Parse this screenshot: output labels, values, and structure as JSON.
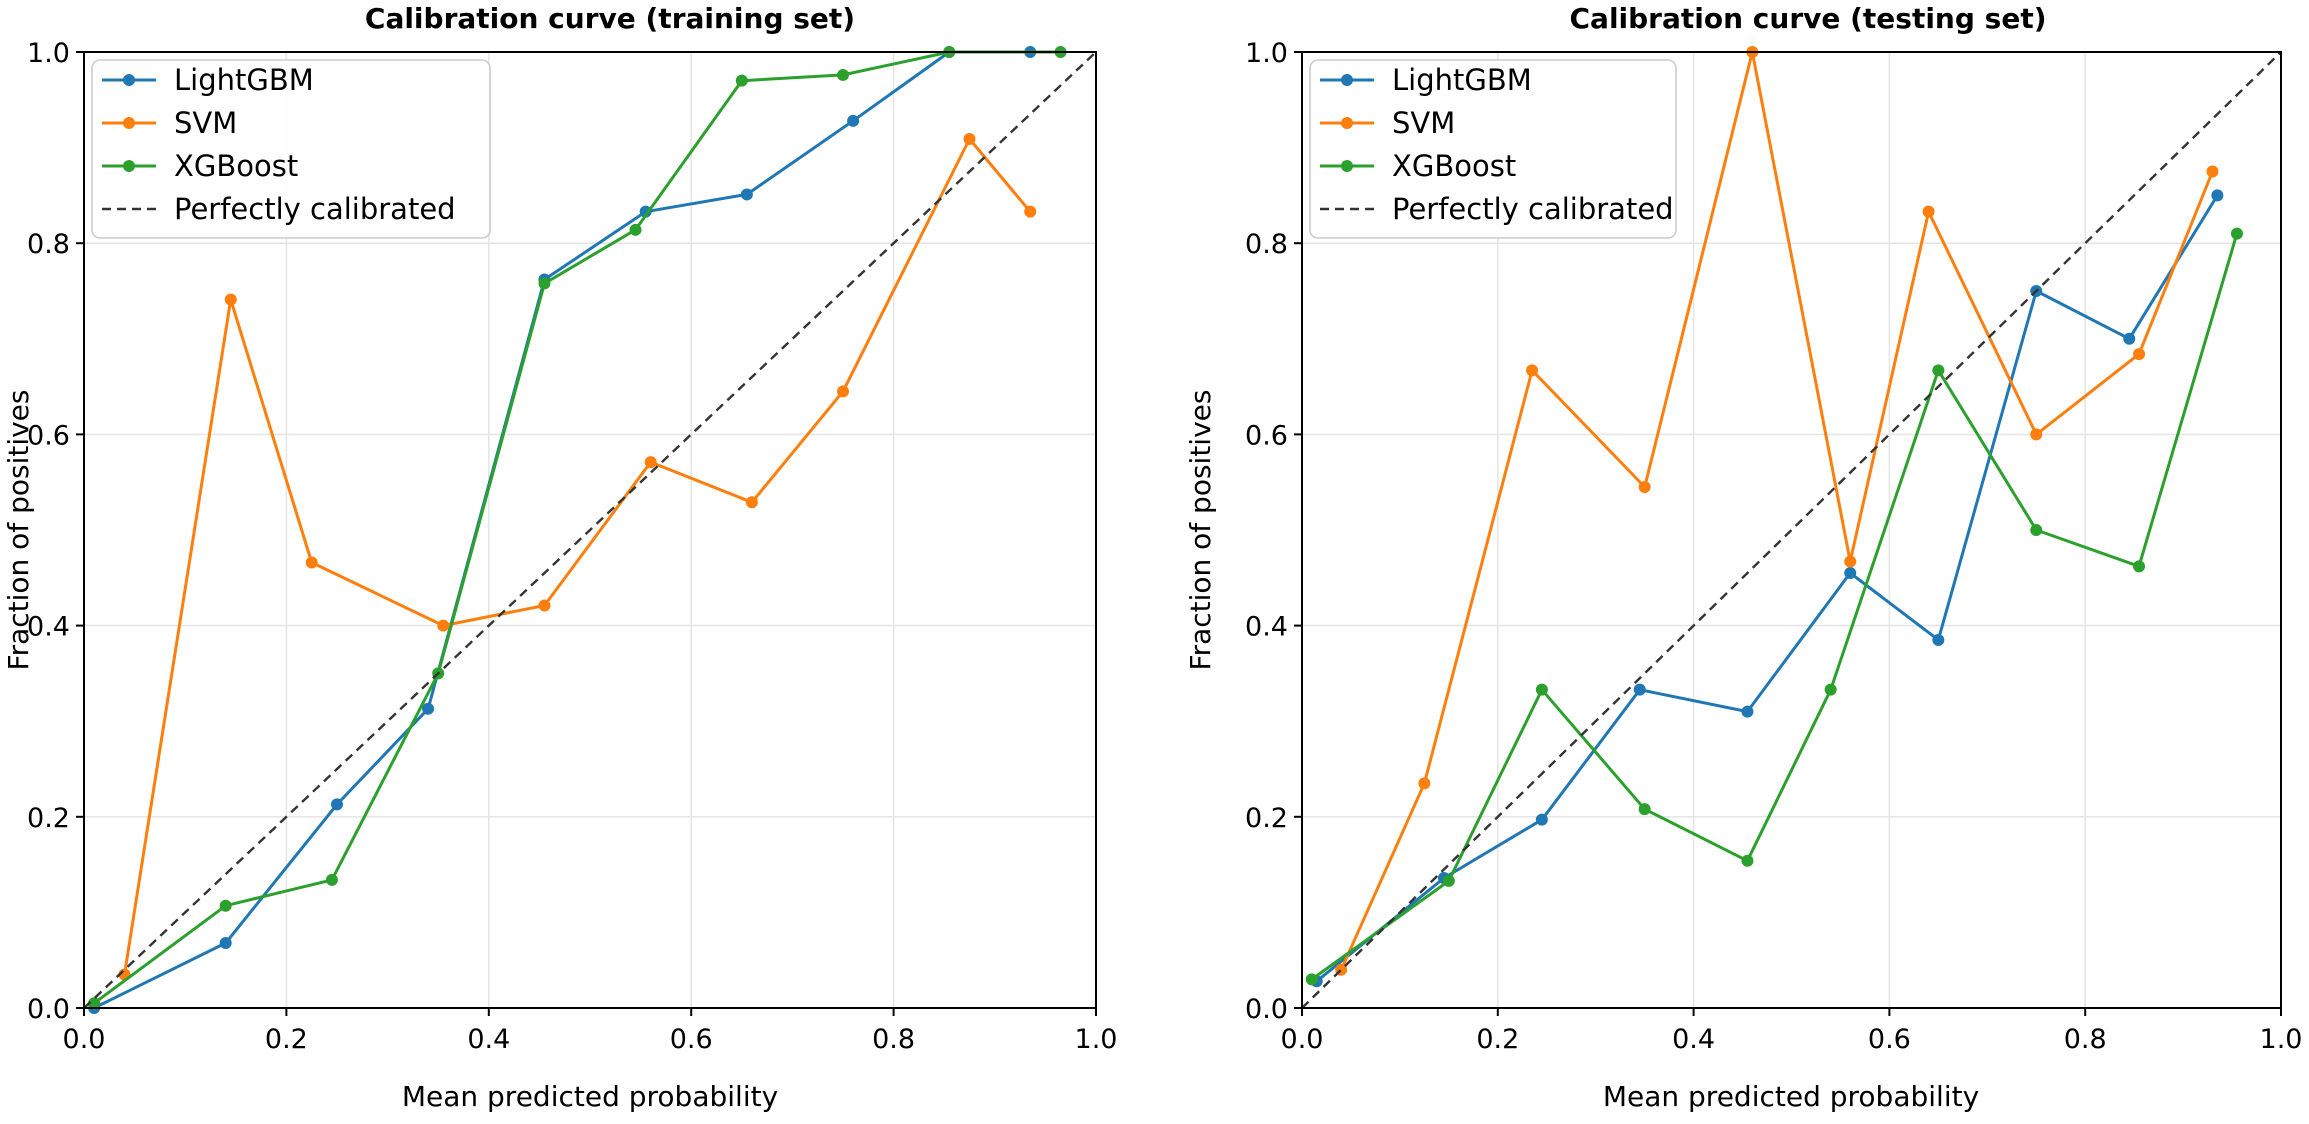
{
  "chart_data": [
    {
      "type": "line",
      "title": "Calibration curve (training set)",
      "xlabel": "Mean predicted probability",
      "ylabel": "Fraction of positives",
      "xlim": [
        0,
        1
      ],
      "ylim": [
        0,
        1
      ],
      "xticks": [
        "0.0",
        "0.2",
        "0.4",
        "0.6",
        "0.8",
        "1.0"
      ],
      "yticks": [
        "0.0",
        "0.2",
        "0.4",
        "0.6",
        "0.8",
        "1.0"
      ],
      "grid": true,
      "legend_position": "top-left",
      "series": [
        {
          "name": "LightGBM",
          "color": "#1f77b4",
          "x": [
            0.01,
            0.14,
            0.25,
            0.34,
            0.455,
            0.555,
            0.655,
            0.76,
            0.855,
            0.935
          ],
          "y": [
            0.0,
            0.068,
            0.213,
            0.313,
            0.762,
            0.833,
            0.851,
            0.928,
            1.0,
            1.0
          ]
        },
        {
          "name": "SVM",
          "color": "#ff7f0e",
          "x": [
            0.04,
            0.145,
            0.225,
            0.355,
            0.455,
            0.56,
            0.66,
            0.75,
            0.875,
            0.935
          ],
          "y": [
            0.035,
            0.741,
            0.466,
            0.4,
            0.421,
            0.571,
            0.529,
            0.645,
            0.909,
            0.833
          ]
        },
        {
          "name": "XGBoost",
          "color": "#2ca02c",
          "x": [
            0.01,
            0.14,
            0.245,
            0.35,
            0.455,
            0.545,
            0.65,
            0.75,
            0.855,
            0.965
          ],
          "y": [
            0.005,
            0.107,
            0.134,
            0.35,
            0.758,
            0.814,
            0.97,
            0.976,
            1.0,
            1.0
          ]
        },
        {
          "name": "Perfectly calibrated",
          "color": "#333333",
          "dashed": true,
          "x": [
            0,
            1
          ],
          "y": [
            0,
            1
          ]
        }
      ]
    },
    {
      "type": "line",
      "title": "Calibration curve (testing set)",
      "xlabel": "Mean predicted probability",
      "ylabel": "Fraction of positives",
      "xlim": [
        0,
        1
      ],
      "ylim": [
        0,
        1
      ],
      "xticks": [
        "0.0",
        "0.2",
        "0.4",
        "0.6",
        "0.8",
        "1.0"
      ],
      "yticks": [
        "0.0",
        "0.2",
        "0.4",
        "0.6",
        "0.8",
        "1.0"
      ],
      "grid": true,
      "legend_position": "top-left",
      "series": [
        {
          "name": "LightGBM",
          "color": "#1f77b4",
          "x": [
            0.015,
            0.145,
            0.245,
            0.345,
            0.455,
            0.56,
            0.65,
            0.75,
            0.845,
            0.935
          ],
          "y": [
            0.028,
            0.136,
            0.197,
            0.333,
            0.31,
            0.455,
            0.385,
            0.75,
            0.7,
            0.85
          ]
        },
        {
          "name": "SVM",
          "color": "#ff7f0e",
          "x": [
            0.04,
            0.125,
            0.235,
            0.35,
            0.46,
            0.56,
            0.64,
            0.75,
            0.855,
            0.93
          ],
          "y": [
            0.04,
            0.235,
            0.667,
            0.545,
            1.0,
            0.467,
            0.833,
            0.6,
            0.684,
            0.875
          ]
        },
        {
          "name": "XGBoost",
          "color": "#2ca02c",
          "x": [
            0.01,
            0.15,
            0.245,
            0.35,
            0.455,
            0.54,
            0.65,
            0.75,
            0.855,
            0.955
          ],
          "y": [
            0.03,
            0.133,
            0.333,
            0.208,
            0.154,
            0.333,
            0.667,
            0.5,
            0.462,
            0.81
          ]
        },
        {
          "name": "Perfectly calibrated",
          "color": "#333333",
          "dashed": true,
          "x": [
            0,
            1
          ],
          "y": [
            0,
            1
          ]
        }
      ]
    }
  ]
}
